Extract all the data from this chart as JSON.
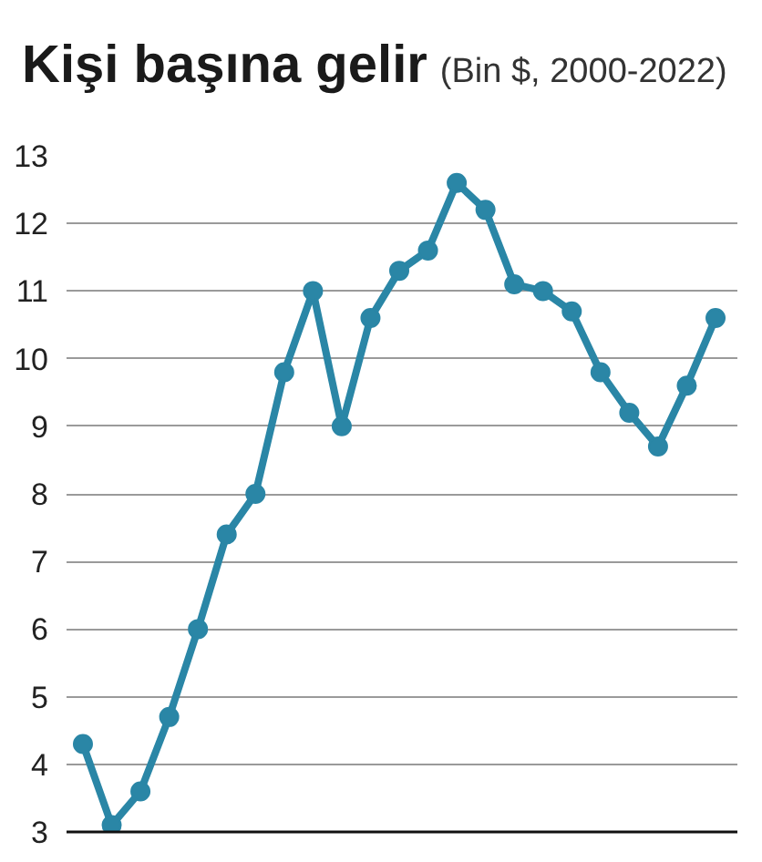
{
  "chart_data": {
    "type": "line",
    "title": "Kişi başına gelir",
    "subtitle": "(Bin $, 2000-2022)",
    "categories": [
      null,
      null,
      null,
      null,
      null,
      null,
      null,
      null,
      null,
      null,
      null,
      null,
      null,
      null,
      null,
      null,
      null,
      null,
      null,
      null,
      null,
      null,
      null
    ],
    "series": [
      {
        "color": "#2a86a6",
        "values": [
          4.3,
          3.1,
          3.6,
          4.7,
          6.0,
          7.4,
          8.0,
          9.8,
          11.0,
          9.0,
          10.6,
          11.3,
          11.6,
          12.6,
          12.2,
          11.1,
          11.0,
          10.7,
          9.8,
          9.2,
          8.7,
          9.6,
          10.6
        ]
      }
    ],
    "ylim": [
      3,
      13
    ],
    "yticks": [
      3,
      4,
      5,
      6,
      7,
      8,
      9,
      10,
      11,
      12,
      13
    ],
    "grid": "y",
    "marker": "circle",
    "line_style": "solid",
    "tick_labels": "y"
  }
}
